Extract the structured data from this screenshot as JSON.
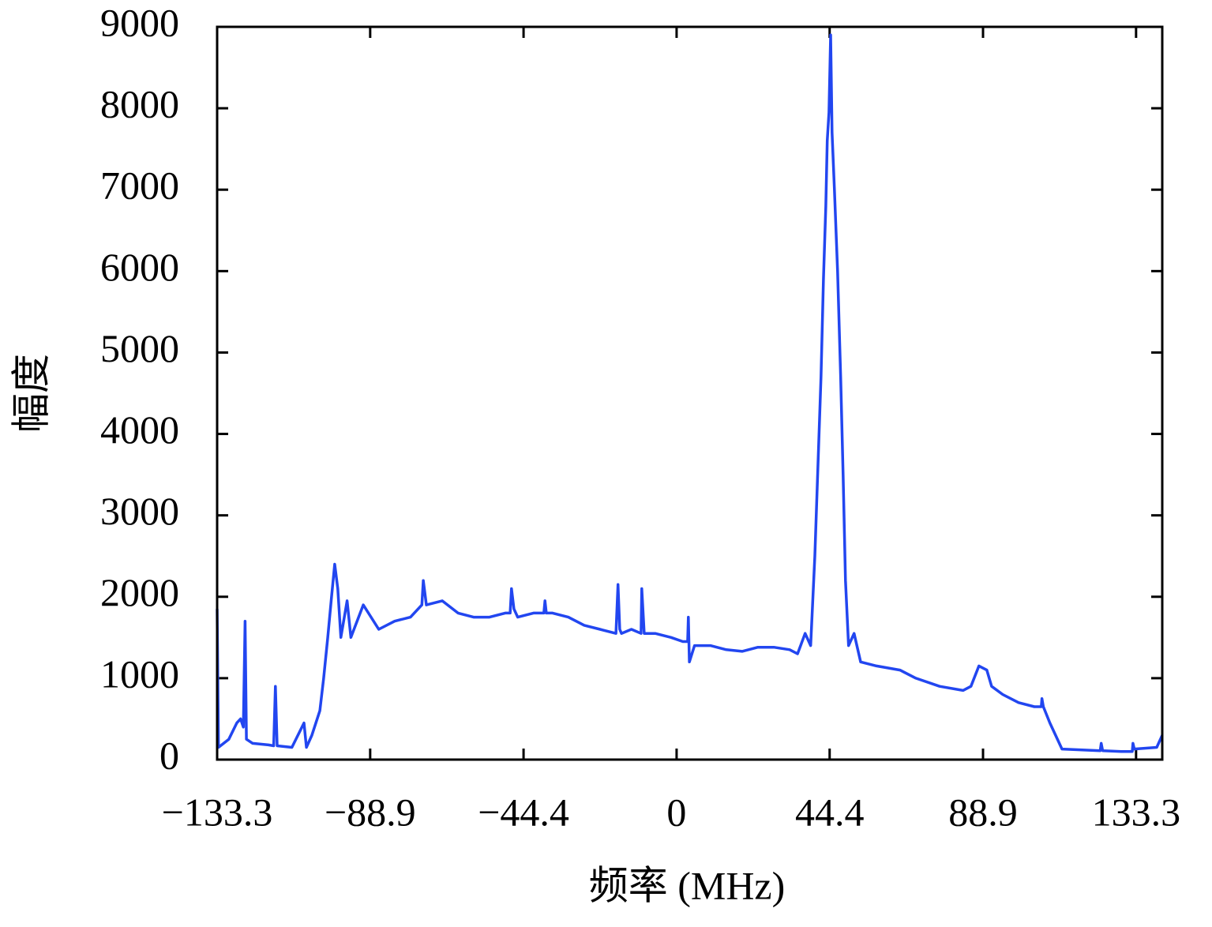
{
  "chart_data": {
    "type": "line",
    "xlabel": "频率 (MHz)",
    "ylabel": "幅度",
    "color": "#2246f0",
    "xlim": [
      -133.3,
      140.9
    ],
    "ylim": [
      0,
      9000
    ],
    "xticks": [
      {
        "value": -133.3,
        "label": "−133.3"
      },
      {
        "value": -88.9,
        "label": "−88.9"
      },
      {
        "value": -44.4,
        "label": "−44.4"
      },
      0,
      44.4,
      88.9,
      133.3
    ],
    "yticks": [
      0,
      1000,
      2000,
      3000,
      4000,
      5000,
      6000,
      7000,
      8000,
      9000
    ],
    "x": [
      -133.3,
      -132.9,
      -129.9,
      -127.6,
      -126.5,
      -125.7,
      -125.2,
      -124.8,
      -123.0,
      -118.4,
      -116.9,
      -116.4,
      -115.9,
      -111.6,
      -108.1,
      -107.4,
      -105.8,
      -103.5,
      -102.4,
      -101.2,
      -100.1,
      -99.2,
      -98.3,
      -97.4,
      -95.6,
      -94.5,
      -90.9,
      -86.4,
      -81.8,
      -77.2,
      -73.9,
      -73.5,
      -72.6,
      -68.0,
      -63.4,
      -58.9,
      -54.3,
      -49.7,
      -48.3,
      -47.9,
      -47.2,
      -46.1,
      -41.5,
      -38.5,
      -38.2,
      -37.8,
      -36.0,
      -31.4,
      -26.8,
      -22.2,
      -17.6,
      -17.0,
      -16.5,
      -16.0,
      -13.1,
      -10.3,
      -10.1,
      -9.4,
      -6.2,
      -1.6,
      1.8,
      3.2,
      3.4,
      3.7,
      5.2,
      9.8,
      14.4,
      19.0,
      23.6,
      28.2,
      32.8,
      35.1,
      37.3,
      38.9,
      40.1,
      41.0,
      41.9,
      42.6,
      43.3,
      43.7,
      44.2,
      44.7,
      45.1,
      45.8,
      46.7,
      47.6,
      48.3,
      49.0,
      49.9,
      51.5,
      53.4,
      58.0,
      64.8,
      69.4,
      76.3,
      83.1,
      85.4,
      87.7,
      90.0,
      91.4,
      94.6,
      99.2,
      103.8,
      105.8,
      106.0,
      106.4,
      108.3,
      111.8,
      122.9,
      123.2,
      123.6,
      129.0,
      132.2,
      132.4,
      132.8,
      139.3,
      140.9
    ],
    "values": [
      1850,
      150,
      250,
      450,
      500,
      400,
      1700,
      250,
      200,
      180,
      170,
      900,
      170,
      150,
      450,
      150,
      300,
      600,
      1000,
      1500,
      2000,
      2400,
      2100,
      1500,
      1950,
      1500,
      1900,
      1600,
      1700,
      1750,
      1900,
      2200,
      1900,
      1950,
      1800,
      1750,
      1750,
      1800,
      1800,
      2100,
      1850,
      1750,
      1800,
      1800,
      1950,
      1800,
      1800,
      1750,
      1650,
      1600,
      1550,
      2150,
      1600,
      1550,
      1600,
      1550,
      2100,
      1550,
      1550,
      1500,
      1450,
      1450,
      1750,
      1200,
      1400,
      1400,
      1350,
      1330,
      1380,
      1380,
      1350,
      1300,
      1550,
      1400,
      2500,
      3600,
      4700,
      5900,
      6800,
      7600,
      7950,
      8900,
      7700,
      7000,
      6000,
      4700,
      3500,
      2200,
      1400,
      1550,
      1200,
      1150,
      1100,
      1000,
      900,
      850,
      900,
      1150,
      1100,
      900,
      800,
      700,
      650,
      650,
      750,
      650,
      450,
      130,
      110,
      200,
      110,
      100,
      100,
      200,
      130,
      150,
      300
    ]
  }
}
